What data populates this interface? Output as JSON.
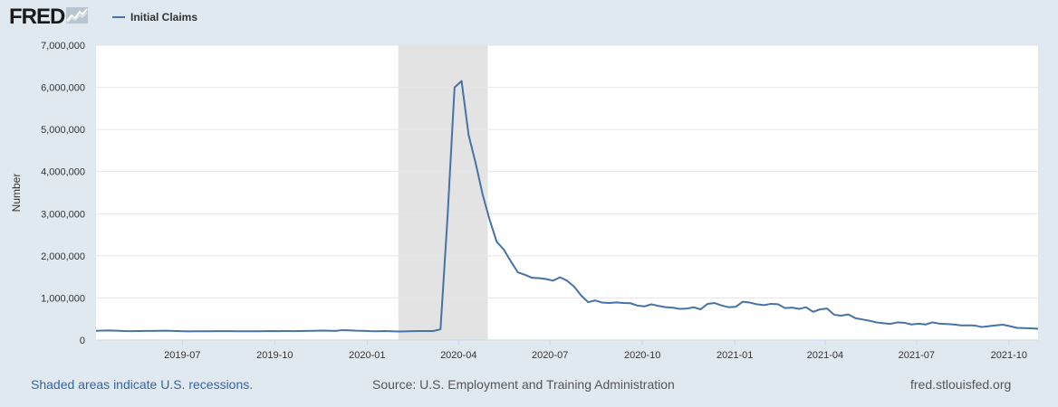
{
  "header": {
    "logo_text": "FRED",
    "logo_icon": "chart-line-icon",
    "legend_label": "Initial Claims",
    "series_color": "#4572a7"
  },
  "footer": {
    "recession_note": "Shaded areas indicate U.S. recessions.",
    "source": "Source: U.S. Employment and Training Administration",
    "site": "fred.stlouisfed.org"
  },
  "chart_data": {
    "type": "line",
    "title": "",
    "xlabel": "",
    "ylabel": "Number",
    "ylim": [
      0,
      7000000
    ],
    "xlim": [
      "2019-04-06",
      "2021-10-30"
    ],
    "yticks": [
      {
        "value": 0,
        "label": "0"
      },
      {
        "value": 1000000,
        "label": "1,000,000"
      },
      {
        "value": 2000000,
        "label": "2,000,000"
      },
      {
        "value": 3000000,
        "label": "3,000,000"
      },
      {
        "value": 4000000,
        "label": "4,000,000"
      },
      {
        "value": 5000000,
        "label": "5,000,000"
      },
      {
        "value": 6000000,
        "label": "6,000,000"
      },
      {
        "value": 7000000,
        "label": "7,000,000"
      }
    ],
    "xticks": [
      {
        "date": "2019-07-01",
        "label": "2019-07"
      },
      {
        "date": "2019-10-01",
        "label": "2019-10"
      },
      {
        "date": "2020-01-01",
        "label": "2020-01"
      },
      {
        "date": "2020-04-01",
        "label": "2020-04"
      },
      {
        "date": "2020-07-01",
        "label": "2020-07"
      },
      {
        "date": "2020-10-01",
        "label": "2020-10"
      },
      {
        "date": "2021-01-01",
        "label": "2021-01"
      },
      {
        "date": "2021-04-01",
        "label": "2021-04"
      },
      {
        "date": "2021-07-01",
        "label": "2021-07"
      },
      {
        "date": "2021-10-01",
        "label": "2021-10"
      }
    ],
    "grid": true,
    "recession": {
      "start": "2020-02-01",
      "end": "2020-04-30",
      "color": "#e3e3e3"
    },
    "series": [
      {
        "name": "Initial Claims",
        "color": "#4572a7",
        "points": [
          [
            "2019-04-06",
            220000
          ],
          [
            "2019-04-13",
            225000
          ],
          [
            "2019-04-20",
            228000
          ],
          [
            "2019-04-27",
            222000
          ],
          [
            "2019-05-04",
            215000
          ],
          [
            "2019-05-11",
            213000
          ],
          [
            "2019-05-18",
            214000
          ],
          [
            "2019-05-25",
            218000
          ],
          [
            "2019-06-01",
            217000
          ],
          [
            "2019-06-08",
            219000
          ],
          [
            "2019-06-15",
            222000
          ],
          [
            "2019-06-22",
            218000
          ],
          [
            "2019-06-29",
            212000
          ],
          [
            "2019-07-06",
            206000
          ],
          [
            "2019-07-13",
            210000
          ],
          [
            "2019-07-20",
            209000
          ],
          [
            "2019-07-27",
            210000
          ],
          [
            "2019-08-03",
            212000
          ],
          [
            "2019-08-10",
            213000
          ],
          [
            "2019-08-17",
            211000
          ],
          [
            "2019-08-24",
            209000
          ],
          [
            "2019-08-31",
            210000
          ],
          [
            "2019-09-07",
            208000
          ],
          [
            "2019-09-14",
            210000
          ],
          [
            "2019-09-21",
            213000
          ],
          [
            "2019-09-28",
            215000
          ],
          [
            "2019-10-05",
            212000
          ],
          [
            "2019-10-12",
            214000
          ],
          [
            "2019-10-19",
            213000
          ],
          [
            "2019-10-26",
            215000
          ],
          [
            "2019-11-02",
            217000
          ],
          [
            "2019-11-09",
            220000
          ],
          [
            "2019-11-16",
            225000
          ],
          [
            "2019-11-23",
            222000
          ],
          [
            "2019-11-30",
            218000
          ],
          [
            "2019-12-07",
            235000
          ],
          [
            "2019-12-14",
            230000
          ],
          [
            "2019-12-21",
            222000
          ],
          [
            "2019-12-28",
            220000
          ],
          [
            "2020-01-04",
            212000
          ],
          [
            "2020-01-11",
            208000
          ],
          [
            "2020-01-18",
            215000
          ],
          [
            "2020-01-25",
            210000
          ],
          [
            "2020-02-01",
            205000
          ],
          [
            "2020-02-08",
            207000
          ],
          [
            "2020-02-15",
            212000
          ],
          [
            "2020-02-22",
            215000
          ],
          [
            "2020-02-29",
            216000
          ],
          [
            "2020-03-07",
            215000
          ],
          [
            "2020-03-14",
            256000
          ],
          [
            "2020-03-21",
            2920000
          ],
          [
            "2020-03-28",
            6000000
          ],
          [
            "2020-04-04",
            6150000
          ],
          [
            "2020-04-11",
            4870000
          ],
          [
            "2020-04-18",
            4200000
          ],
          [
            "2020-04-25",
            3450000
          ],
          [
            "2020-05-02",
            2850000
          ],
          [
            "2020-05-09",
            2330000
          ],
          [
            "2020-05-16",
            2150000
          ],
          [
            "2020-05-23",
            1870000
          ],
          [
            "2020-05-30",
            1610000
          ],
          [
            "2020-06-06",
            1550000
          ],
          [
            "2020-06-13",
            1480000
          ],
          [
            "2020-06-20",
            1470000
          ],
          [
            "2020-06-27",
            1450000
          ],
          [
            "2020-07-04",
            1410000
          ],
          [
            "2020-07-11",
            1490000
          ],
          [
            "2020-07-18",
            1410000
          ],
          [
            "2020-07-25",
            1270000
          ],
          [
            "2020-08-01",
            1060000
          ],
          [
            "2020-08-08",
            900000
          ],
          [
            "2020-08-15",
            940000
          ],
          [
            "2020-08-22",
            890000
          ],
          [
            "2020-08-29",
            880000
          ],
          [
            "2020-09-05",
            895000
          ],
          [
            "2020-09-12",
            880000
          ],
          [
            "2020-09-19",
            875000
          ],
          [
            "2020-09-26",
            820000
          ],
          [
            "2020-10-03",
            800000
          ],
          [
            "2020-10-10",
            850000
          ],
          [
            "2020-10-17",
            810000
          ],
          [
            "2020-10-24",
            780000
          ],
          [
            "2020-10-31",
            770000
          ],
          [
            "2020-11-07",
            740000
          ],
          [
            "2020-11-14",
            745000
          ],
          [
            "2020-11-21",
            780000
          ],
          [
            "2020-11-28",
            730000
          ],
          [
            "2020-12-05",
            860000
          ],
          [
            "2020-12-12",
            880000
          ],
          [
            "2020-12-19",
            820000
          ],
          [
            "2020-12-26",
            780000
          ],
          [
            "2021-01-02",
            790000
          ],
          [
            "2021-01-09",
            910000
          ],
          [
            "2021-01-16",
            890000
          ],
          [
            "2021-01-23",
            850000
          ],
          [
            "2021-01-30",
            830000
          ],
          [
            "2021-02-06",
            860000
          ],
          [
            "2021-02-13",
            850000
          ],
          [
            "2021-02-20",
            760000
          ],
          [
            "2021-02-27",
            770000
          ],
          [
            "2021-03-06",
            740000
          ],
          [
            "2021-03-13",
            780000
          ],
          [
            "2021-03-20",
            670000
          ],
          [
            "2021-03-27",
            730000
          ],
          [
            "2021-04-03",
            750000
          ],
          [
            "2021-04-10",
            600000
          ],
          [
            "2021-04-17",
            580000
          ],
          [
            "2021-04-24",
            610000
          ],
          [
            "2021-05-01",
            520000
          ],
          [
            "2021-05-08",
            490000
          ],
          [
            "2021-05-15",
            460000
          ],
          [
            "2021-05-22",
            420000
          ],
          [
            "2021-05-29",
            400000
          ],
          [
            "2021-06-05",
            385000
          ],
          [
            "2021-06-12",
            420000
          ],
          [
            "2021-06-19",
            410000
          ],
          [
            "2021-06-26",
            370000
          ],
          [
            "2021-07-03",
            390000
          ],
          [
            "2021-07-10",
            370000
          ],
          [
            "2021-07-17",
            420000
          ],
          [
            "2021-07-24",
            390000
          ],
          [
            "2021-07-31",
            380000
          ],
          [
            "2021-08-07",
            370000
          ],
          [
            "2021-08-14",
            350000
          ],
          [
            "2021-08-21",
            350000
          ],
          [
            "2021-08-28",
            345000
          ],
          [
            "2021-09-04",
            310000
          ],
          [
            "2021-09-11",
            330000
          ],
          [
            "2021-09-18",
            350000
          ],
          [
            "2021-09-25",
            365000
          ],
          [
            "2021-10-02",
            330000
          ],
          [
            "2021-10-09",
            290000
          ],
          [
            "2021-10-16",
            285000
          ],
          [
            "2021-10-23",
            280000
          ],
          [
            "2021-10-30",
            268000
          ]
        ]
      }
    ]
  }
}
